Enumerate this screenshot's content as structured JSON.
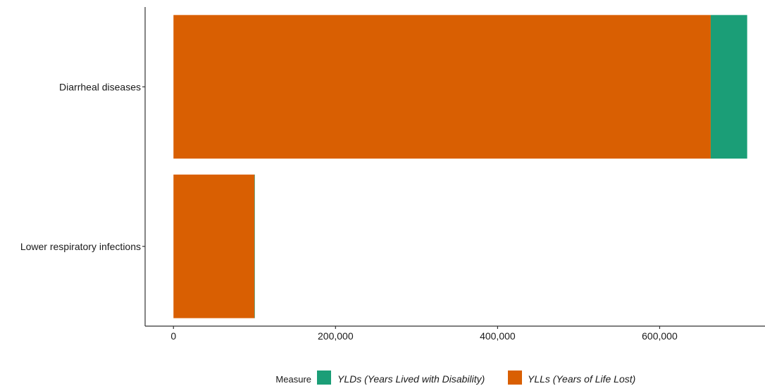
{
  "chart_data": {
    "type": "bar",
    "orientation": "horizontal",
    "stacked": true,
    "categories": [
      "Diarrheal diseases",
      "Lower respiratory infections"
    ],
    "series": [
      {
        "name": "YLLs (Years of Life Lost)",
        "values": [
          663000,
          100000
        ],
        "color": "#d95f02"
      },
      {
        "name": "YLDs (Years Lived with Disability)",
        "values": [
          45000,
          500
        ],
        "color": "#1b9e77"
      }
    ],
    "xlim": [
      -35000,
      730000
    ],
    "xticks": [
      0,
      200000,
      400000,
      600000
    ],
    "xtick_labels": [
      "0",
      "200,000",
      "400,000",
      "600,000"
    ],
    "xlabel": "",
    "ylabel": "",
    "grid": false,
    "legend": {
      "title": "Measure",
      "position": "bottom",
      "items": [
        {
          "label": "YLDs (Years Lived with Disability)",
          "color": "#1b9e77"
        },
        {
          "label": "YLLs (Years of Life Lost)",
          "color": "#d95f02"
        }
      ]
    }
  }
}
